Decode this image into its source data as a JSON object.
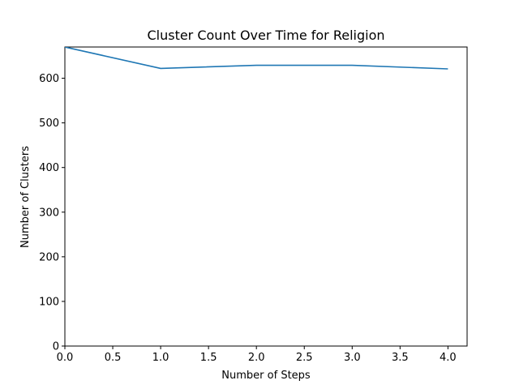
{
  "chart_data": {
    "type": "line",
    "title": "Cluster Count Over Time for Religion",
    "xlabel": "Number of Steps",
    "ylabel": "Number of Clusters",
    "xlim": [
      0,
      4.2
    ],
    "ylim": [
      0,
      670
    ],
    "x_ticks": [
      "0.0",
      "0.5",
      "1.0",
      "1.5",
      "2.0",
      "2.5",
      "3.0",
      "3.5",
      "4.0"
    ],
    "x_tick_values": [
      0,
      0.5,
      1,
      1.5,
      2,
      2.5,
      3,
      3.5,
      4
    ],
    "y_ticks": [
      "0",
      "100",
      "200",
      "300",
      "400",
      "500",
      "600"
    ],
    "y_tick_values": [
      0,
      100,
      200,
      300,
      400,
      500,
      600
    ],
    "grid": false,
    "series": [
      {
        "x": [
          0,
          1,
          2,
          3,
          4
        ],
        "values": [
          670,
          622,
          629,
          629,
          621
        ],
        "color": "#1f77b4"
      }
    ]
  }
}
